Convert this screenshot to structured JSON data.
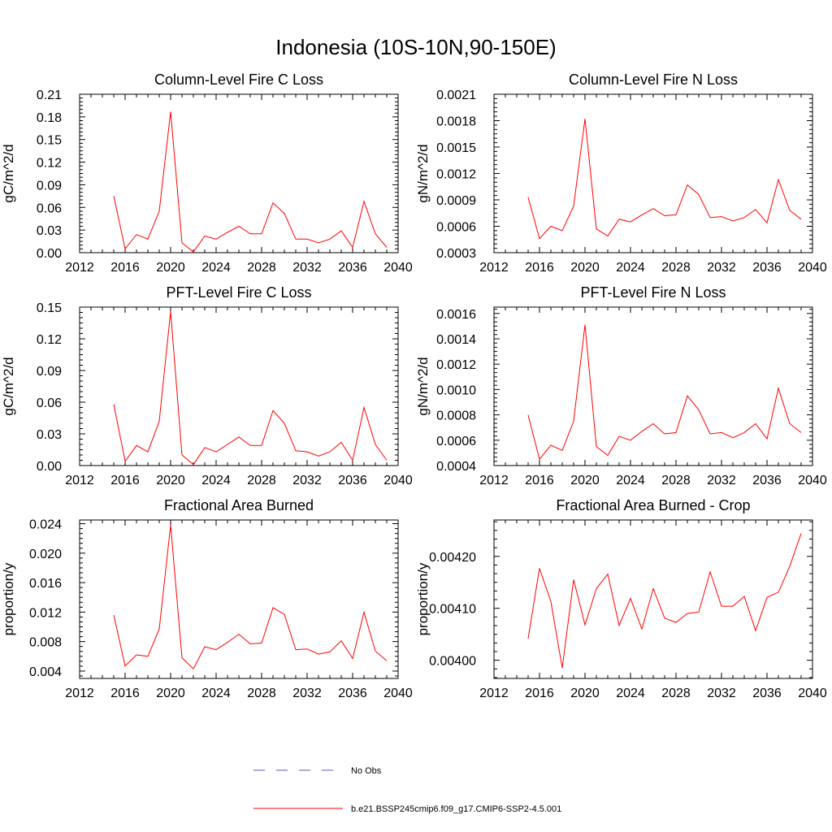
{
  "figure": {
    "title": "Indonesia (10S-10N,90-150E)",
    "legend": [
      {
        "label": "No Obs",
        "color": "#5a5ab4",
        "dashed": true
      },
      {
        "label": "b.e21.BSSP245cmip6.f09_g17.CMIP6-SSP2-4.5.001",
        "color": "#ff0000",
        "dashed": false
      }
    ]
  },
  "chart_data": [
    {
      "type": "line",
      "title": "Column-Level Fire C Loss",
      "ylabel": "gC/m^2/d",
      "xlim": [
        2012,
        2040
      ],
      "ylim": [
        0,
        0.21
      ],
      "xticks": [
        "2012",
        "2016",
        "2020",
        "2024",
        "2028",
        "2032",
        "2036",
        "2040"
      ],
      "yticks": [
        "0.00",
        "0.03",
        "0.06",
        "0.09",
        "0.12",
        "0.15",
        "0.18",
        "0.21"
      ],
      "x": [
        2015,
        2016,
        2017,
        2018,
        2019,
        2020,
        2021,
        2022,
        2023,
        2024,
        2025,
        2026,
        2027,
        2028,
        2029,
        2030,
        2031,
        2032,
        2033,
        2034,
        2035,
        2036,
        2037,
        2038,
        2039
      ],
      "series": [
        {
          "color": "#ff0000",
          "values": [
            0.075,
            0.005,
            0.024,
            0.018,
            0.055,
            0.187,
            0.013,
            0.001,
            0.022,
            0.018,
            0.027,
            0.035,
            0.025,
            0.025,
            0.066,
            0.052,
            0.018,
            0.018,
            0.013,
            0.018,
            0.029,
            0.007,
            0.068,
            0.025,
            0.007
          ]
        }
      ]
    },
    {
      "type": "line",
      "title": "Column-Level Fire N Loss",
      "ylabel": "gN/m^2/d",
      "xlim": [
        2012,
        2040
      ],
      "ylim": [
        0.0003,
        0.0021
      ],
      "xticks": [
        "2012",
        "2016",
        "2020",
        "2024",
        "2028",
        "2032",
        "2036",
        "2040"
      ],
      "yticks": [
        "0.0003",
        "0.0006",
        "0.0009",
        "0.0012",
        "0.0015",
        "0.0018",
        "0.0021"
      ],
      "x": [
        2015,
        2016,
        2017,
        2018,
        2019,
        2020,
        2021,
        2022,
        2023,
        2024,
        2025,
        2026,
        2027,
        2028,
        2029,
        2030,
        2031,
        2032,
        2033,
        2034,
        2035,
        2036,
        2037,
        2038,
        2039
      ],
      "series": [
        {
          "color": "#ff0000",
          "values": [
            0.00093,
            0.00046,
            0.0006,
            0.00055,
            0.00083,
            0.00182,
            0.00057,
            0.00049,
            0.00068,
            0.00065,
            0.00073,
            0.0008,
            0.00072,
            0.00073,
            0.00107,
            0.00096,
            0.0007,
            0.00071,
            0.00066,
            0.0007,
            0.00079,
            0.00064,
            0.00113,
            0.00078,
            0.00068
          ]
        }
      ]
    },
    {
      "type": "line",
      "title": "PFT-Level Fire C Loss",
      "ylabel": "gC/m^2/d",
      "xlim": [
        2012,
        2040
      ],
      "ylim": [
        0,
        0.15
      ],
      "xticks": [
        "2012",
        "2016",
        "2020",
        "2024",
        "2028",
        "2032",
        "2036",
        "2040"
      ],
      "yticks": [
        "0.00",
        "0.03",
        "0.06",
        "0.09",
        "0.12",
        "0.15"
      ],
      "x": [
        2015,
        2016,
        2017,
        2018,
        2019,
        2020,
        2021,
        2022,
        2023,
        2024,
        2025,
        2026,
        2027,
        2028,
        2029,
        2030,
        2031,
        2032,
        2033,
        2034,
        2035,
        2036,
        2037,
        2038,
        2039
      ],
      "series": [
        {
          "color": "#ff0000",
          "values": [
            0.058,
            0.004,
            0.019,
            0.013,
            0.042,
            0.146,
            0.01,
            0.001,
            0.017,
            0.013,
            0.02,
            0.027,
            0.019,
            0.019,
            0.052,
            0.04,
            0.014,
            0.013,
            0.009,
            0.013,
            0.022,
            0.005,
            0.055,
            0.02,
            0.005
          ]
        }
      ]
    },
    {
      "type": "line",
      "title": "PFT-Level Fire N Loss",
      "ylabel": "gN/m^2/d",
      "xlim": [
        2012,
        2040
      ],
      "ylim": [
        0.0004,
        0.00165
      ],
      "xticks": [
        "2012",
        "2016",
        "2020",
        "2024",
        "2028",
        "2032",
        "2036",
        "2040"
      ],
      "yticks": [
        "0.0004",
        "0.0006",
        "0.0008",
        "0.0010",
        "0.0012",
        "0.0014",
        "0.0016"
      ],
      "x": [
        2015,
        2016,
        2017,
        2018,
        2019,
        2020,
        2021,
        2022,
        2023,
        2024,
        2025,
        2026,
        2027,
        2028,
        2029,
        2030,
        2031,
        2032,
        2033,
        2034,
        2035,
        2036,
        2037,
        2038,
        2039
      ],
      "series": [
        {
          "color": "#ff0000",
          "values": [
            0.0008,
            0.00045,
            0.00056,
            0.00052,
            0.00075,
            0.00151,
            0.00055,
            0.00048,
            0.00063,
            0.0006,
            0.00067,
            0.00073,
            0.00065,
            0.00066,
            0.00095,
            0.00084,
            0.00065,
            0.00066,
            0.00062,
            0.00066,
            0.00073,
            0.00061,
            0.00101,
            0.00073,
            0.00066
          ]
        }
      ]
    },
    {
      "type": "line",
      "title": "Fractional Area Burned",
      "ylabel": "proportion/y",
      "xlim": [
        2012,
        2040
      ],
      "ylim": [
        0.003,
        0.0245
      ],
      "xticks": [
        "2012",
        "2016",
        "2020",
        "2024",
        "2028",
        "2032",
        "2036",
        "2040"
      ],
      "yticks": [
        "0.004",
        "0.008",
        "0.012",
        "0.016",
        "0.020",
        "0.024"
      ],
      "x": [
        2015,
        2016,
        2017,
        2018,
        2019,
        2020,
        2021,
        2022,
        2023,
        2024,
        2025,
        2026,
        2027,
        2028,
        2029,
        2030,
        2031,
        2032,
        2033,
        2034,
        2035,
        2036,
        2037,
        2038,
        2039
      ],
      "series": [
        {
          "color": "#ff0000",
          "values": [
            0.0116,
            0.0047,
            0.0062,
            0.006,
            0.0097,
            0.0238,
            0.0058,
            0.0043,
            0.0073,
            0.0069,
            0.0079,
            0.009,
            0.0077,
            0.0078,
            0.0126,
            0.0117,
            0.0069,
            0.007,
            0.0063,
            0.0066,
            0.0081,
            0.0057,
            0.012,
            0.0067,
            0.0054
          ]
        }
      ]
    },
    {
      "type": "line",
      "title": "Fractional Area Burned - Crop",
      "ylabel": "proportion/y",
      "xlim": [
        2012,
        2040
      ],
      "ylim": [
        0.003965,
        0.00427
      ],
      "xticks": [
        "2012",
        "2016",
        "2020",
        "2024",
        "2028",
        "2032",
        "2036",
        "2040"
      ],
      "yticks": [
        "0.00400",
        "0.00410",
        "0.00420"
      ],
      "x": [
        2015,
        2016,
        2017,
        2018,
        2019,
        2020,
        2021,
        2022,
        2023,
        2024,
        2025,
        2026,
        2027,
        2028,
        2029,
        2030,
        2031,
        2032,
        2033,
        2034,
        2035,
        2036,
        2037,
        2038,
        2039
      ],
      "series": [
        {
          "color": "#ff0000",
          "values": [
            0.004042,
            0.004177,
            0.004113,
            0.003985,
            0.004155,
            0.004068,
            0.004138,
            0.004166,
            0.004067,
            0.004119,
            0.00406,
            0.004138,
            0.004081,
            0.004073,
            0.00409,
            0.004093,
            0.00417,
            0.004104,
            0.004104,
            0.004123,
            0.004057,
            0.004121,
            0.004131,
            0.004181,
            0.004244
          ]
        }
      ]
    }
  ]
}
